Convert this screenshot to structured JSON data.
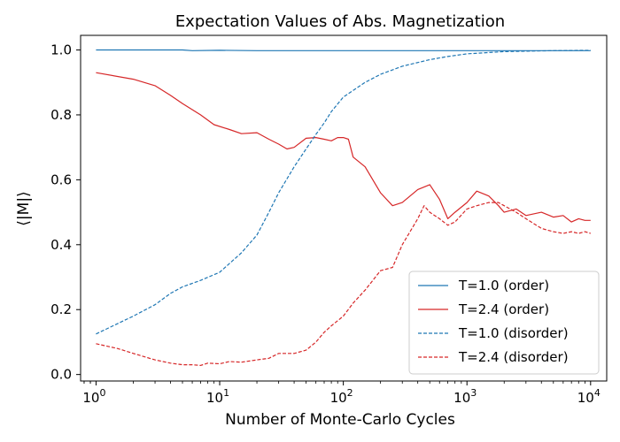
{
  "chart_data": {
    "type": "line",
    "title": "Expectation Values of Abs. Magnetization",
    "xlabel": "Number of Monte-Carlo Cycles",
    "ylabel": "⟨|M|⟩",
    "xscale": "log",
    "xlim": [
      0.75,
      13500
    ],
    "ylim": [
      -0.02,
      1.045
    ],
    "x_ticks": [
      {
        "value": 1,
        "base": "10",
        "exp": "0"
      },
      {
        "value": 10,
        "base": "10",
        "exp": "1"
      },
      {
        "value": 100,
        "base": "10",
        "exp": "2"
      },
      {
        "value": 1000,
        "base": "10",
        "exp": "3"
      },
      {
        "value": 10000,
        "base": "10",
        "exp": "4"
      }
    ],
    "y_ticks": [
      {
        "value": 0.0,
        "label": "0.0"
      },
      {
        "value": 0.2,
        "label": "0.2"
      },
      {
        "value": 0.4,
        "label": "0.4"
      },
      {
        "value": 0.6,
        "label": "0.6"
      },
      {
        "value": 0.8,
        "label": "0.8"
      },
      {
        "value": 1.0,
        "label": "1.0"
      }
    ],
    "grid": false,
    "legend_position": "bottom-right",
    "series": [
      {
        "name": "T=1.0 (order)",
        "color": "#1f77b4",
        "style": "solid",
        "x": [
          1,
          2,
          5,
          6,
          10,
          20,
          50,
          100,
          200,
          500,
          1000,
          2000,
          5000,
          10000
        ],
        "y": [
          1.0,
          1.0,
          1.0,
          0.998,
          0.999,
          0.998,
          0.998,
          0.998,
          0.998,
          0.998,
          0.998,
          0.998,
          0.998,
          0.998
        ]
      },
      {
        "name": "T=2.4 (order)",
        "color": "#d62728",
        "style": "solid",
        "x": [
          1,
          2,
          3,
          4,
          5,
          7,
          9,
          12,
          15,
          20,
          25,
          30,
          35,
          40,
          50,
          60,
          70,
          80,
          90,
          100,
          110,
          120,
          150,
          200,
          250,
          300,
          400,
          500,
          600,
          700,
          800,
          1000,
          1200,
          1500,
          1800,
          2000,
          2500,
          3000,
          4000,
          5000,
          6000,
          7000,
          8000,
          9000,
          10000
        ],
        "y": [
          0.93,
          0.91,
          0.89,
          0.86,
          0.835,
          0.8,
          0.77,
          0.755,
          0.742,
          0.745,
          0.725,
          0.71,
          0.695,
          0.7,
          0.728,
          0.73,
          0.725,
          0.72,
          0.73,
          0.73,
          0.725,
          0.67,
          0.64,
          0.56,
          0.52,
          0.53,
          0.57,
          0.585,
          0.54,
          0.48,
          0.5,
          0.53,
          0.565,
          0.55,
          0.52,
          0.5,
          0.51,
          0.49,
          0.5,
          0.485,
          0.49,
          0.47,
          0.48,
          0.475,
          0.475
        ]
      },
      {
        "name": "T=1.0 (disorder)",
        "color": "#1f77b4",
        "style": "dashed",
        "x": [
          1,
          2,
          3,
          4,
          5,
          7,
          10,
          15,
          20,
          25,
          30,
          40,
          50,
          60,
          70,
          80,
          100,
          150,
          200,
          300,
          500,
          700,
          1000,
          2000,
          5000,
          10000
        ],
        "y": [
          0.125,
          0.18,
          0.215,
          0.25,
          0.27,
          0.29,
          0.315,
          0.375,
          0.43,
          0.5,
          0.56,
          0.64,
          0.695,
          0.74,
          0.775,
          0.81,
          0.855,
          0.9,
          0.925,
          0.95,
          0.97,
          0.98,
          0.988,
          0.995,
          0.998,
          0.999
        ]
      },
      {
        "name": "T=2.4 (disorder)",
        "color": "#d62728",
        "style": "dashed",
        "x": [
          1,
          1.5,
          2,
          3,
          4,
          5,
          6,
          7,
          8,
          10,
          12,
          15,
          20,
          25,
          30,
          40,
          50,
          60,
          70,
          80,
          100,
          120,
          150,
          200,
          250,
          300,
          400,
          450,
          500,
          600,
          700,
          800,
          1000,
          1200,
          1500,
          1800,
          2000,
          2500,
          3000,
          4000,
          5000,
          6000,
          7000,
          8000,
          9000,
          10000
        ],
        "y": [
          0.095,
          0.08,
          0.065,
          0.045,
          0.035,
          0.03,
          0.03,
          0.028,
          0.035,
          0.033,
          0.04,
          0.038,
          0.045,
          0.05,
          0.065,
          0.065,
          0.075,
          0.1,
          0.13,
          0.15,
          0.18,
          0.22,
          0.26,
          0.32,
          0.33,
          0.4,
          0.48,
          0.52,
          0.5,
          0.48,
          0.46,
          0.47,
          0.51,
          0.52,
          0.53,
          0.53,
          0.52,
          0.5,
          0.48,
          0.45,
          0.44,
          0.435,
          0.44,
          0.435,
          0.44,
          0.435
        ]
      }
    ]
  }
}
